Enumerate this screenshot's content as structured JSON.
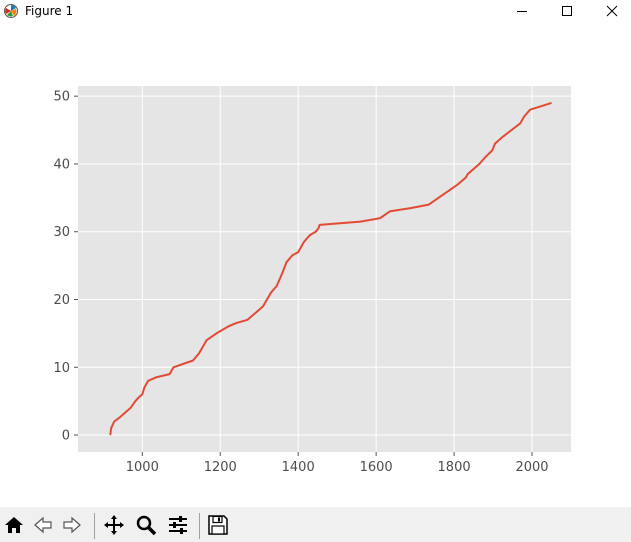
{
  "window": {
    "title": "Figure 1"
  },
  "toolbar": {
    "buttons": [
      "home-icon",
      "back-icon",
      "forward-icon",
      "pan-icon",
      "zoom-icon",
      "configure-subplots-icon",
      "save-icon"
    ]
  },
  "chart_data": {
    "type": "line",
    "title": "",
    "xlabel": "",
    "ylabel": "",
    "xlim": [
      835,
      2100
    ],
    "ylim": [
      -2.5,
      51.5
    ],
    "xticks": [
      "1000",
      "1200",
      "1400",
      "1600",
      "1800",
      "2000"
    ],
    "yticks": [
      "0",
      "10",
      "20",
      "30",
      "40",
      "50"
    ],
    "grid": true,
    "colors": {
      "line": "#e24a33",
      "axes_bg": "#e5e5e5",
      "grid": "#ffffff"
    },
    "series": [
      {
        "x": [
          918,
          920,
          928,
          940,
          960,
          970,
          982,
          990,
          1000,
          1005,
          1015,
          1035,
          1070,
          1080,
          1090,
          1130,
          1145,
          1165,
          1190,
          1220,
          1240,
          1270,
          1290,
          1310,
          1320,
          1330,
          1345,
          1360,
          1370,
          1385,
          1400,
          1415,
          1430,
          1445,
          1452,
          1455,
          1560,
          1610,
          1635,
          1690,
          1735,
          1810,
          1830,
          1835,
          1845,
          1865,
          1880,
          1898,
          1905,
          1925,
          1970,
          1980,
          1995,
          2050
        ],
        "y": [
          0,
          1,
          2,
          2.5,
          3.5,
          4.0,
          5.0,
          5.5,
          6.0,
          7.0,
          8.0,
          8.5,
          9,
          10,
          10.2,
          11.0,
          12,
          14,
          15,
          16,
          16.5,
          17,
          18,
          19,
          20,
          21,
          22,
          24,
          25.5,
          26.5,
          27,
          28.5,
          29.5,
          30,
          30.5,
          31,
          31.5,
          32,
          33,
          33.5,
          34,
          37,
          38,
          38.5,
          39,
          40,
          41,
          42,
          43,
          44,
          46,
          47,
          48,
          49
        ]
      }
    ]
  }
}
